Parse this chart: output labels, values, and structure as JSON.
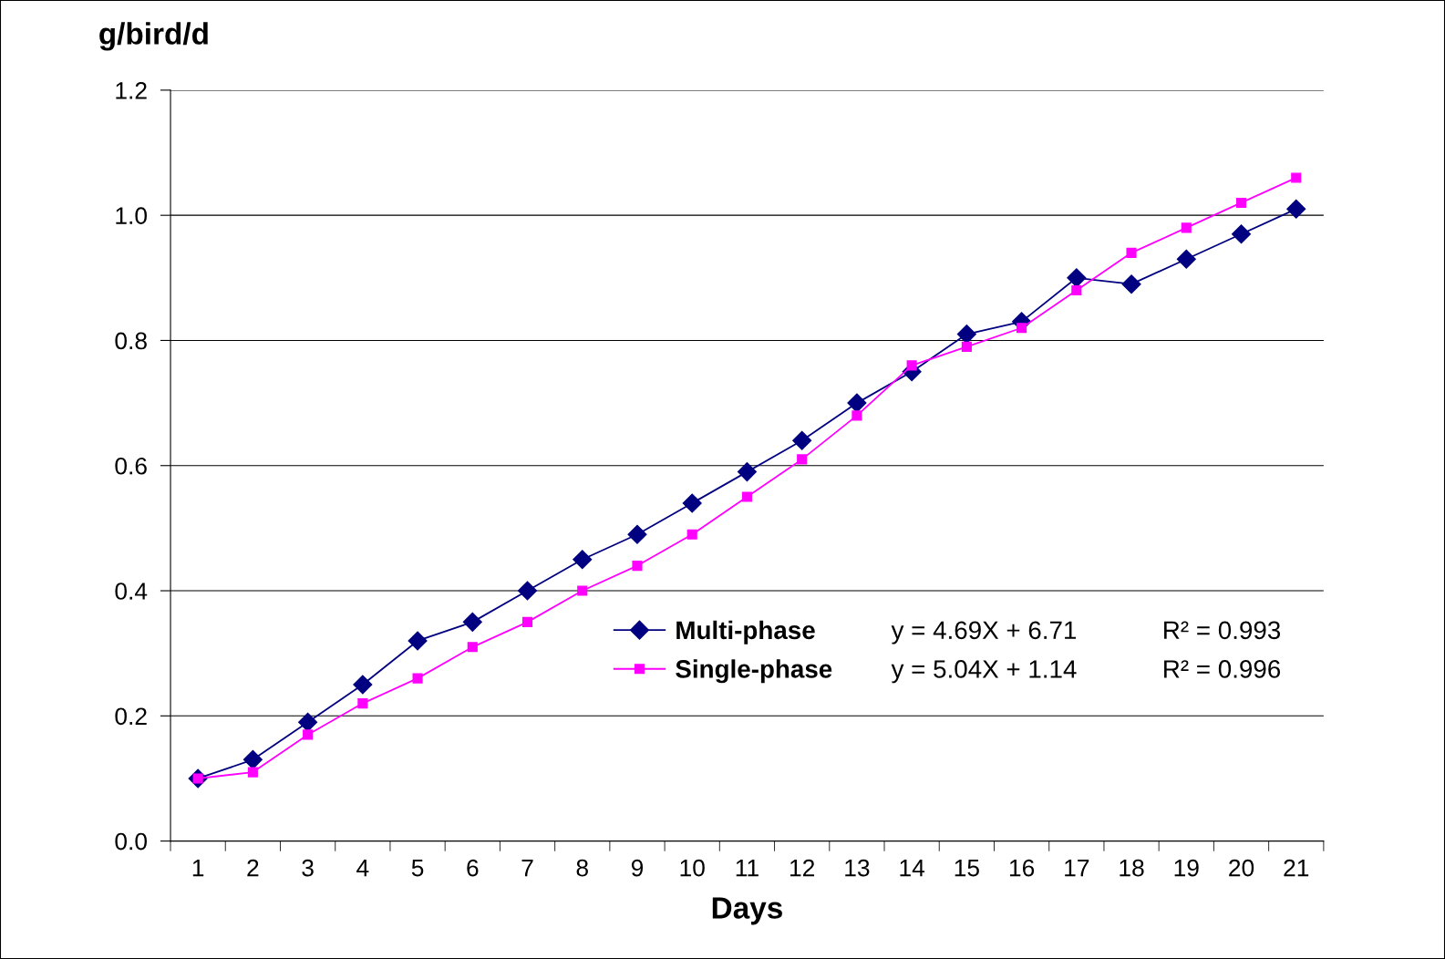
{
  "chart_data": {
    "type": "line",
    "xlabel": "Days",
    "ylabel": "g/bird/d",
    "categories": [
      "1",
      "2",
      "3",
      "4",
      "5",
      "6",
      "7",
      "8",
      "9",
      "10",
      "11",
      "12",
      "13",
      "14",
      "15",
      "16",
      "17",
      "18",
      "19",
      "20",
      "21"
    ],
    "series": [
      {
        "name": "Multi-phase",
        "color": "#000080",
        "marker": "diamond",
        "values": [
          0.1,
          0.13,
          0.19,
          0.25,
          0.32,
          0.35,
          0.4,
          0.45,
          0.49,
          0.54,
          0.59,
          0.64,
          0.7,
          0.75,
          0.81,
          0.83,
          0.9,
          0.89,
          0.93,
          0.97,
          1.01
        ]
      },
      {
        "name": "Single-phase",
        "color": "#ff00ff",
        "marker": "square",
        "values": [
          0.1,
          0.11,
          0.17,
          0.22,
          0.26,
          0.31,
          0.35,
          0.4,
          0.44,
          0.49,
          0.55,
          0.61,
          0.68,
          0.76,
          0.79,
          0.82,
          0.88,
          0.94,
          0.98,
          1.02,
          1.06
        ]
      }
    ],
    "annotations": [
      "y = 4.69X + 6.71",
      "R² = 0.993",
      "y = 5.04X + 1.14",
      "R² = 0.996"
    ],
    "ylim": [
      0,
      1.2
    ],
    "yticks": [
      {
        "value": 0,
        "label": "0.0"
      },
      0.2,
      0.4,
      0.6,
      0.8,
      {
        "value": 1.0,
        "label": "1.0"
      },
      1.2
    ],
    "grid": "y",
    "legend": "bottom right",
    "line_style": "solid"
  }
}
